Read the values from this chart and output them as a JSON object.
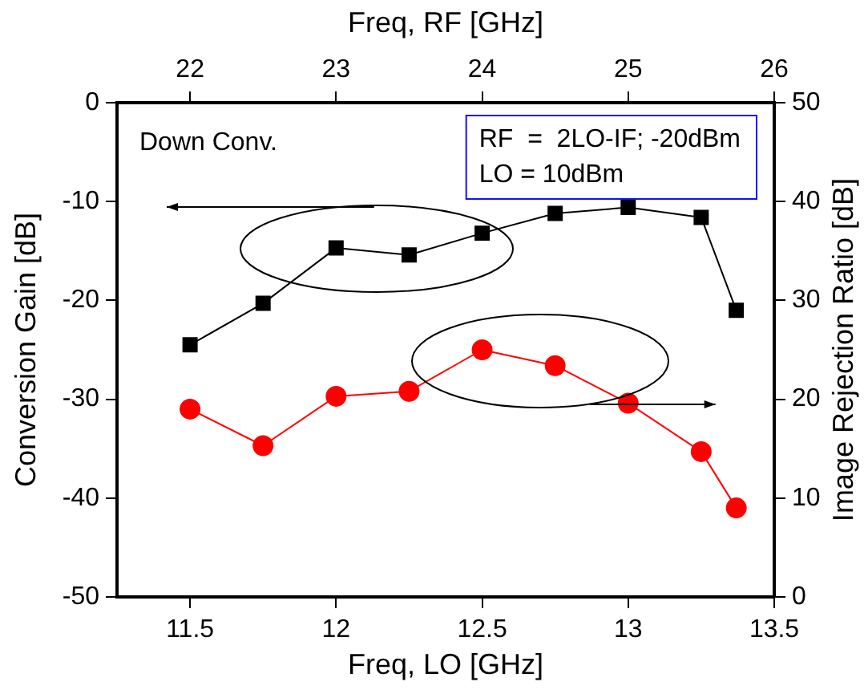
{
  "chart_data": {
    "type": "line",
    "xlabel": "Freq, LO [GHz]",
    "ylabel": "Conversion Gain [dB]",
    "y2label": "Image Rejection Ratio [dB]",
    "x2label": "Freq, RF [GHz]",
    "x": [
      11.5,
      11.75,
      12.0,
      12.25,
      12.5,
      12.75,
      13.0,
      13.25,
      13.37
    ],
    "series": [
      {
        "color": "#000000",
        "marker": "square",
        "values": [
          -24.5,
          -20.3,
          -14.7,
          -15.4,
          -13.2,
          -11.2,
          -10.6,
          -11.6,
          -21.0
        ]
      },
      {
        "color": "#ff0000",
        "marker": "circle",
        "axis": "y2",
        "values": [
          19.0,
          15.3,
          20.3,
          20.8,
          25.0,
          23.4,
          19.6,
          14.7,
          9.0
        ]
      }
    ],
    "xlim": [
      11.25,
      13.5
    ],
    "xticks": [
      11.5,
      12,
      12.5,
      13,
      13.5
    ],
    "x2lim": [
      21.5,
      26
    ],
    "x2ticks": [
      22,
      23,
      24,
      25,
      26
    ],
    "ylim": [
      -50,
      0
    ],
    "yticks": [
      -50,
      -40,
      -30,
      -20,
      -10,
      0
    ],
    "y2lim": [
      0,
      50
    ],
    "y2ticks": [
      0,
      10,
      20,
      30,
      40,
      50
    ],
    "annotations": [
      "Down Conv.",
      "RF  =  2LO-IF; -20dBm\nLO = 10dBm"
    ],
    "grid": false,
    "legend": false
  }
}
